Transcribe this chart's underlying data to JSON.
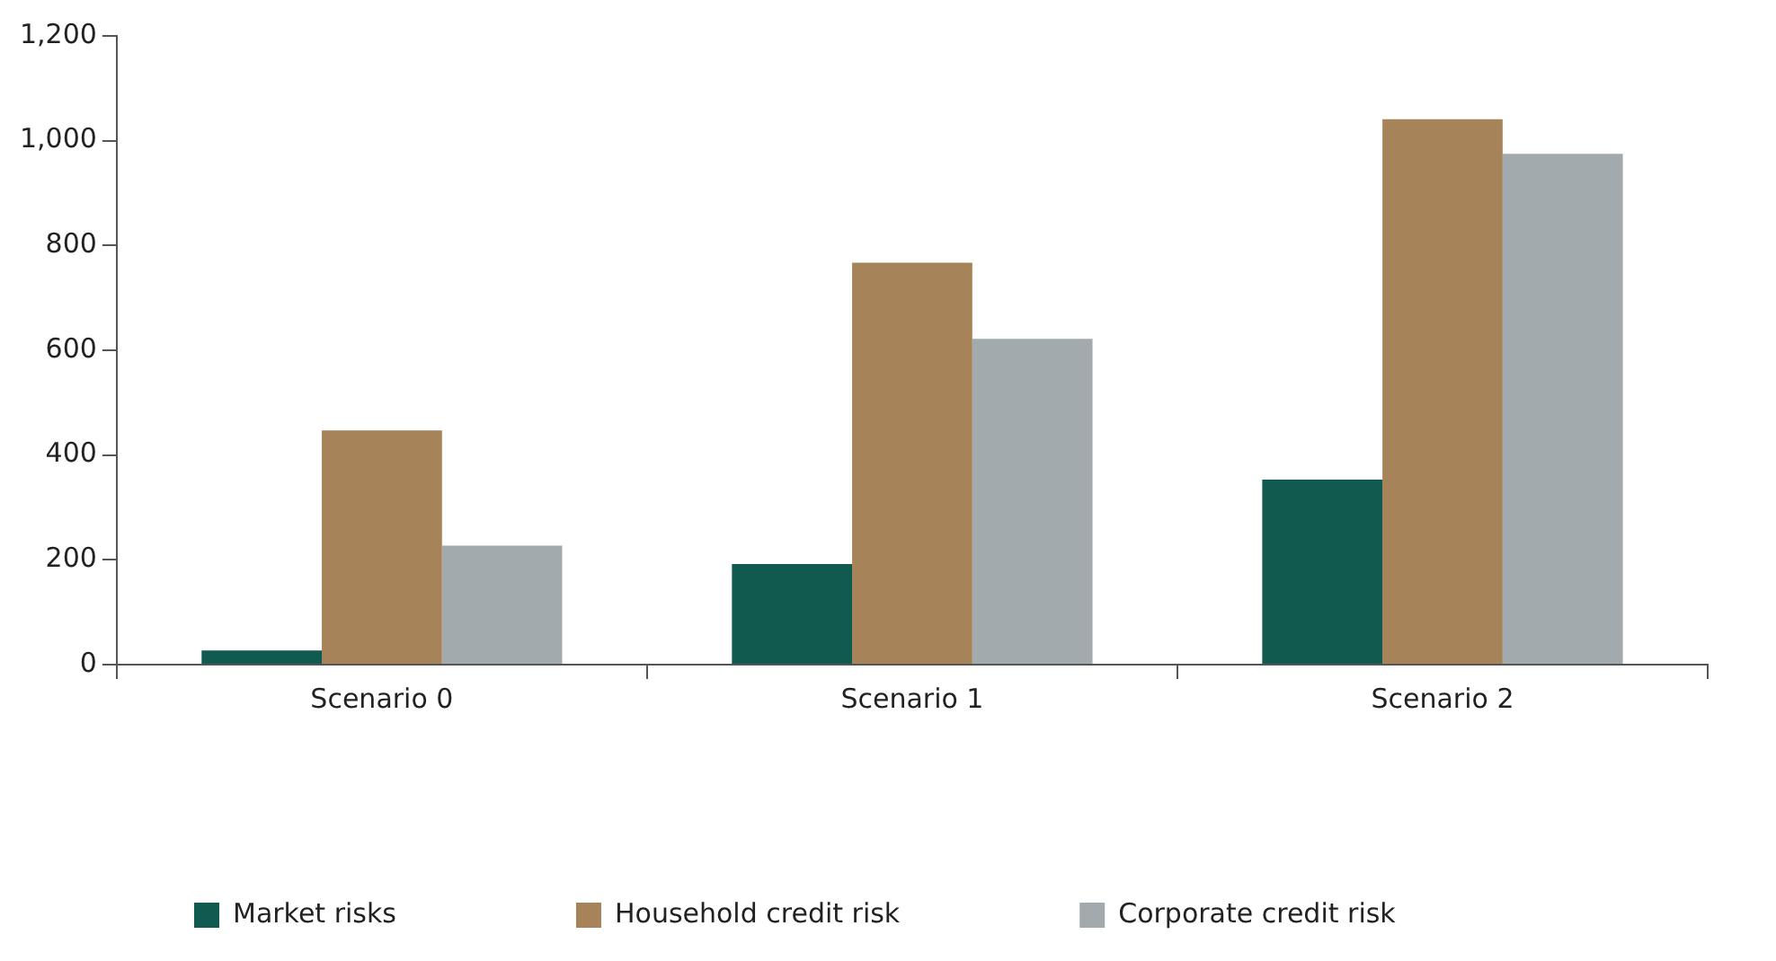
{
  "chart_data": {
    "type": "bar",
    "categories": [
      "Scenario 0",
      "Scenario 1",
      "Scenario 2"
    ],
    "series": [
      {
        "name": "Market risks",
        "color": "#115a50",
        "values": [
          27,
          192,
          353
        ]
      },
      {
        "name": "Household credit risk",
        "color": "#a68358",
        "values": [
          447,
          767,
          1041
        ]
      },
      {
        "name": "Corporate credit risk",
        "color": "#a2aaad",
        "values": [
          227,
          622,
          975
        ]
      }
    ],
    "ylim": [
      0,
      1200
    ],
    "yticks": [
      0,
      200,
      400,
      600,
      800,
      {
        "value": 1000,
        "label": "1,000"
      },
      {
        "value": 1200,
        "label": "1,200"
      }
    ],
    "grid": false,
    "legend": "bottom left"
  }
}
